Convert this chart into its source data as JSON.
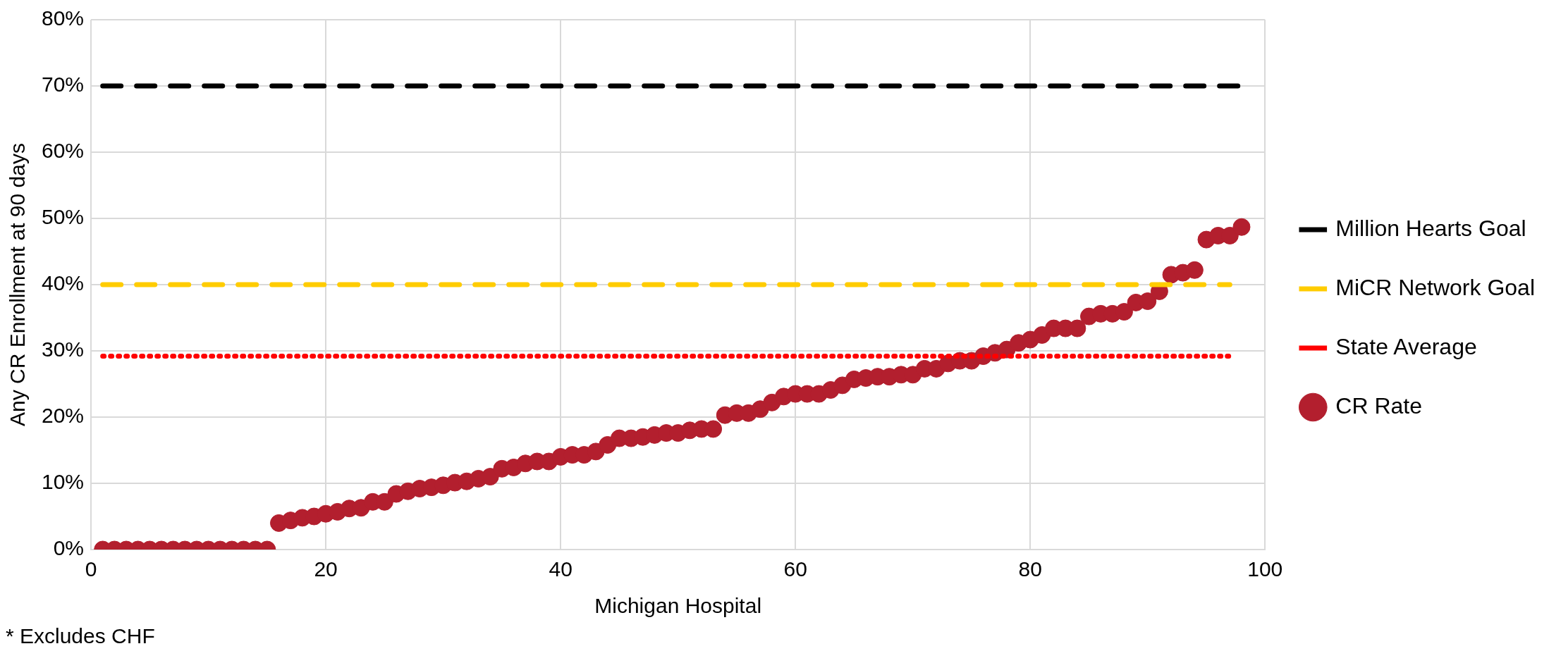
{
  "chart_data": {
    "type": "scatter",
    "xlabel": "Michigan Hospital",
    "ylabel": "Any CR Enrollment at 90 days",
    "xlim": [
      0,
      100
    ],
    "xticks": [
      0,
      20,
      40,
      60,
      80,
      100
    ],
    "ylim": [
      0,
      80
    ],
    "yticks": [
      {
        "value": 0,
        "label": "0%"
      },
      {
        "value": 10,
        "label": "10%"
      },
      {
        "value": 20,
        "label": "20%"
      },
      {
        "value": 30,
        "label": "30%"
      },
      {
        "value": 40,
        "label": "40%"
      },
      {
        "value": 50,
        "label": "50%"
      },
      {
        "value": 60,
        "label": "60%"
      },
      {
        "value": 70,
        "label": "70%"
      },
      {
        "value": 80,
        "label": "80%"
      }
    ],
    "grid": true,
    "legend": "right",
    "annotations": [
      "* Excludes CHF"
    ],
    "series": [
      {
        "name": "Million Hearts Goal",
        "type": "line",
        "line_style": "dashed",
        "marker": "none",
        "color": "#000000",
        "x": [
          1,
          98
        ],
        "values": [
          70,
          70
        ]
      },
      {
        "name": "MiCR Network Goal",
        "type": "line",
        "line_style": "dashed",
        "marker": "none",
        "color": "#ffcc00",
        "x": [
          1,
          97
        ],
        "values": [
          40,
          40
        ]
      },
      {
        "name": "State Average",
        "type": "line",
        "line_style": "dotted",
        "marker": "none",
        "color": "#ff0000",
        "x": [
          1,
          97
        ],
        "values": [
          29.2,
          29.2
        ]
      },
      {
        "name": "CR Rate",
        "marker": "circle",
        "color": "#b31f2e",
        "x": [
          1,
          2,
          3,
          4,
          5,
          6,
          7,
          8,
          9,
          10,
          11,
          12,
          13,
          14,
          15,
          16,
          17,
          18,
          19,
          20,
          21,
          22,
          23,
          24,
          25,
          26,
          27,
          28,
          29,
          30,
          31,
          32,
          33,
          34,
          35,
          36,
          37,
          38,
          39,
          40,
          41,
          42,
          43,
          44,
          45,
          46,
          47,
          48,
          49,
          50,
          51,
          52,
          53,
          54,
          55,
          56,
          57,
          58,
          59,
          60,
          61,
          62,
          63,
          64,
          65,
          66,
          67,
          68,
          69,
          70,
          71,
          72,
          73,
          74,
          75,
          76,
          77,
          78,
          79,
          80,
          81,
          82,
          83,
          84,
          85,
          86,
          87,
          88,
          89,
          90,
          91,
          92,
          93,
          94,
          95,
          96,
          97,
          98
        ],
        "values": [
          0,
          0,
          0,
          0,
          0,
          0,
          0,
          0,
          0,
          0,
          0,
          0,
          0,
          0,
          0,
          4.0,
          4.4,
          4.8,
          5.0,
          5.4,
          5.7,
          6.2,
          6.3,
          7.2,
          7.2,
          8.4,
          8.8,
          9.2,
          9.4,
          9.7,
          10.1,
          10.3,
          10.7,
          11.0,
          12.2,
          12.4,
          13.0,
          13.3,
          13.3,
          14.0,
          14.3,
          14.3,
          14.8,
          15.8,
          16.8,
          16.8,
          17.0,
          17.3,
          17.6,
          17.6,
          18.0,
          18.2,
          18.2,
          20.3,
          20.6,
          20.6,
          21.2,
          22.2,
          23.1,
          23.5,
          23.5,
          23.5,
          24.1,
          24.8,
          25.7,
          25.9,
          26.1,
          26.1,
          26.4,
          26.4,
          27.3,
          27.3,
          28.1,
          28.5,
          28.5,
          29.2,
          29.7,
          30.2,
          31.2,
          31.7,
          32.4,
          33.4,
          33.4,
          33.4,
          35.2,
          35.6,
          35.6,
          35.9,
          37.3,
          37.5,
          39.0,
          41.5,
          41.8,
          42.2,
          46.8,
          47.4,
          47.4,
          48.7
        ]
      }
    ]
  }
}
